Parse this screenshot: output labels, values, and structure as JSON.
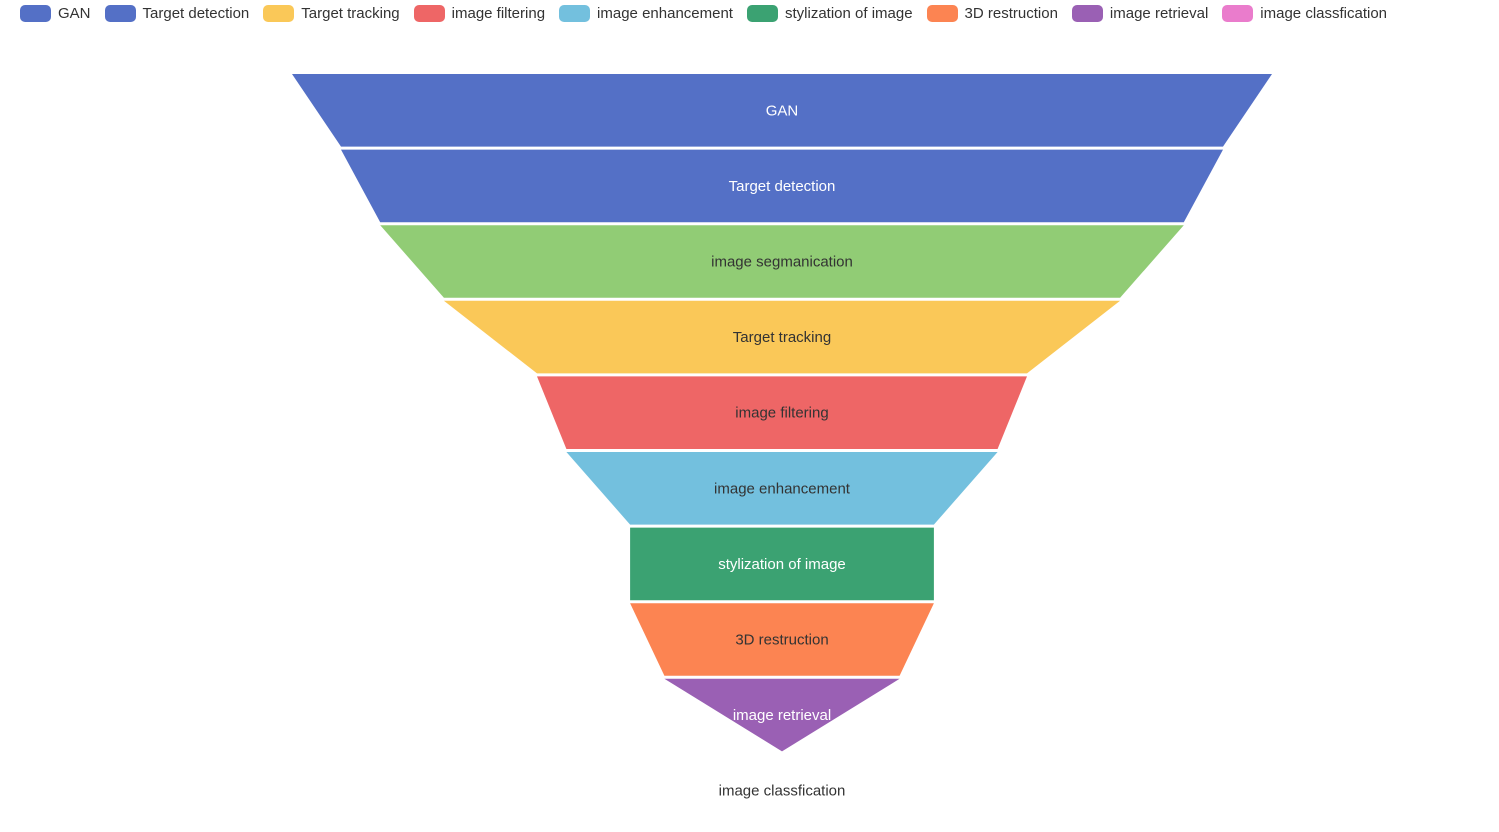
{
  "chart_data": {
    "type": "funnel",
    "title": "",
    "sort": "descending",
    "legend_position": "top-left",
    "stages": [
      {
        "name": "GAN",
        "value": 100,
        "color": "#5470c6",
        "label_color": "#ffffff"
      },
      {
        "name": "Target detection",
        "value": 90,
        "color": "#5470c6",
        "label_color": "#ffffff"
      },
      {
        "name": "image segmanication",
        "value": 82,
        "color": "#91cc75",
        "label_color": "#333333"
      },
      {
        "name": "Target tracking",
        "value": 69,
        "color": "#fac858",
        "label_color": "#333333"
      },
      {
        "name": "image filtering",
        "value": 50,
        "color": "#ee6666",
        "label_color": "#333333"
      },
      {
        "name": "image enhancement",
        "value": 44,
        "color": "#73c0de",
        "label_color": "#333333"
      },
      {
        "name": "stylization of image",
        "value": 31,
        "color": "#3ba272",
        "label_color": "#ffffff"
      },
      {
        "name": "3D restruction",
        "value": 31,
        "color": "#fc8452",
        "label_color": "#333333"
      },
      {
        "name": "image retrieval",
        "value": 24,
        "color": "#9a60b4",
        "label_color": "#ffffff"
      },
      {
        "name": "image classfication",
        "value": 0,
        "color": "#ea7ccc",
        "label_color": "#333333"
      }
    ],
    "legend": [
      {
        "name": "GAN",
        "color": "#5470c6"
      },
      {
        "name": "Target detection",
        "color": "#5470c6"
      },
      {
        "name": "Target tracking",
        "color": "#fac858"
      },
      {
        "name": "image filtering",
        "color": "#ee6666"
      },
      {
        "name": "image enhancement",
        "color": "#73c0de"
      },
      {
        "name": "stylization of image",
        "color": "#3ba272"
      },
      {
        "name": "3D restruction",
        "color": "#fc8452"
      },
      {
        "name": "image retrieval",
        "color": "#9a60b4"
      },
      {
        "name": "image classfication",
        "color": "#ea7ccc"
      }
    ]
  }
}
